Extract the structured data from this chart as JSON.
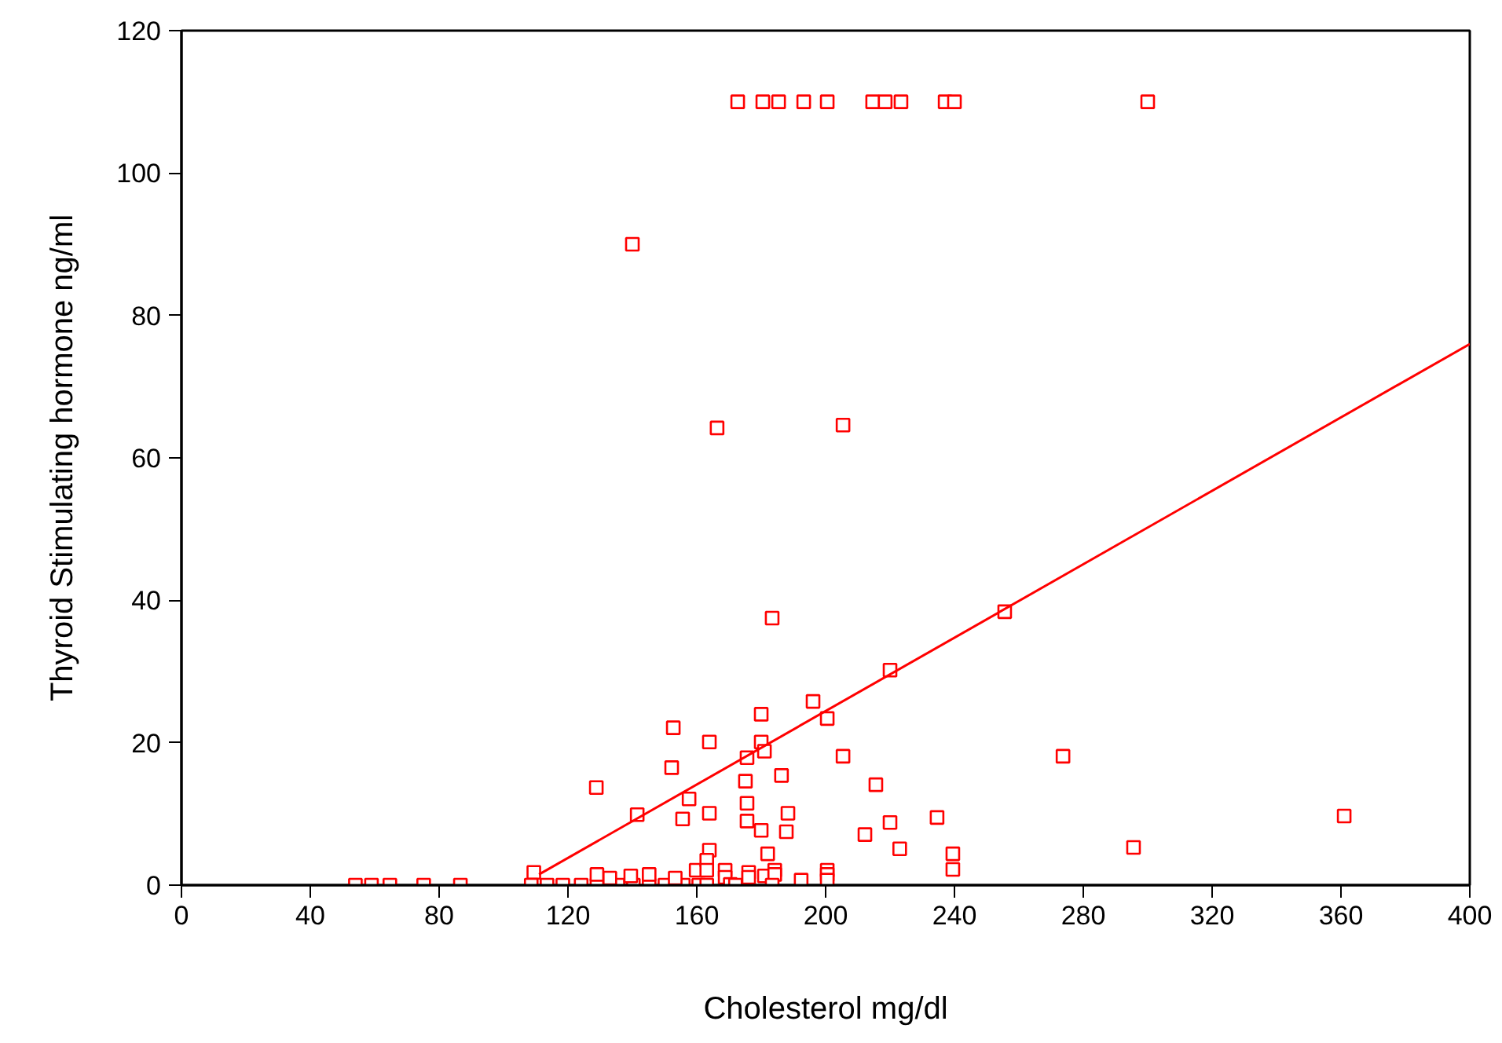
{
  "chart_data": {
    "type": "scatter",
    "xlabel": "Cholesterol mg/dl",
    "ylabel": "Thyroid Stimulating hormone ng/ml",
    "xlim": [
      0,
      400
    ],
    "xticks": [
      0,
      40,
      80,
      120,
      160,
      200,
      240,
      280,
      320,
      360,
      400
    ],
    "ylim": [
      0,
      120
    ],
    "yticks": [
      0,
      20,
      40,
      60,
      80,
      100,
      120
    ],
    "grid": false,
    "series": [
      {
        "marker": "square",
        "color": "#ff0000",
        "x": [
          172.7,
          180.5,
          185.4,
          193.2,
          200.5,
          214.6,
          218.5,
          223.4,
          237.1,
          240,
          300,
          140,
          166.3,
          205.4,
          183.4,
          255.6,
          220,
          196.1,
          180,
          200.5,
          152.7,
          163.9,
          180,
          181,
          205.4,
          273.7,
          175.6,
          152.2,
          186.3,
          175.1,
          215.6,
          128.8,
          157.6,
          175.6,
          163.9,
          188.3,
          141.5,
          155.6,
          234.6,
          361,
          175.6,
          220,
          180,
          187.8,
          212.2,
          223,
          295.6,
          163.9,
          182,
          239.5,
          239.5,
          54,
          59,
          64.7,
          75.2,
          86.6,
          109.4,
          108.6,
          113.5,
          118.4,
          124.1,
          129,
          135.5,
          140.3,
          145.2,
          150.1,
          155.8,
          160.6,
          163.1,
          129,
          133,
          139.5,
          145.2,
          153.3,
          159.8,
          163.1,
          163.1,
          168.8,
          168.8,
          170.4,
          172,
          176.1,
          176.1,
          181,
          184.2,
          184.2,
          183.4,
          192.4,
          200.5,
          200.5,
          200.5
        ],
        "values": [
          110,
          110,
          110,
          110,
          110,
          110,
          110,
          110,
          110,
          110,
          110,
          90,
          64.2,
          64.6,
          37.5,
          38.4,
          30.2,
          25.8,
          24,
          23.4,
          22.1,
          20.1,
          20.1,
          18.8,
          18.1,
          18.1,
          17.9,
          16.5,
          15.4,
          14.6,
          14.1,
          13.7,
          12.1,
          11.5,
          10.1,
          10.1,
          9.9,
          9.3,
          9.5,
          9.7,
          9.0,
          8.8,
          7.7,
          7.5,
          7.1,
          5.1,
          5.3,
          4.9,
          4.4,
          4.4,
          2.2,
          0,
          0,
          0,
          0,
          0,
          1.8,
          0,
          0,
          0,
          0,
          0,
          0,
          0,
          0,
          0,
          0,
          0,
          0,
          1.5,
          1.0,
          1.3,
          1.5,
          1.0,
          2.1,
          3.5,
          2.1,
          2.1,
          1.1,
          0.1,
          0,
          1.8,
          1.1,
          1.3,
          2.1,
          1.5,
          0,
          0.7,
          2.1,
          1.5,
          0.7
        ]
      },
      {
        "type": "line",
        "marker": "none",
        "line_style": "solid",
        "color": "#ff0000",
        "x": [
          111,
          400
        ],
        "values": [
          1.5,
          76
        ]
      }
    ]
  }
}
